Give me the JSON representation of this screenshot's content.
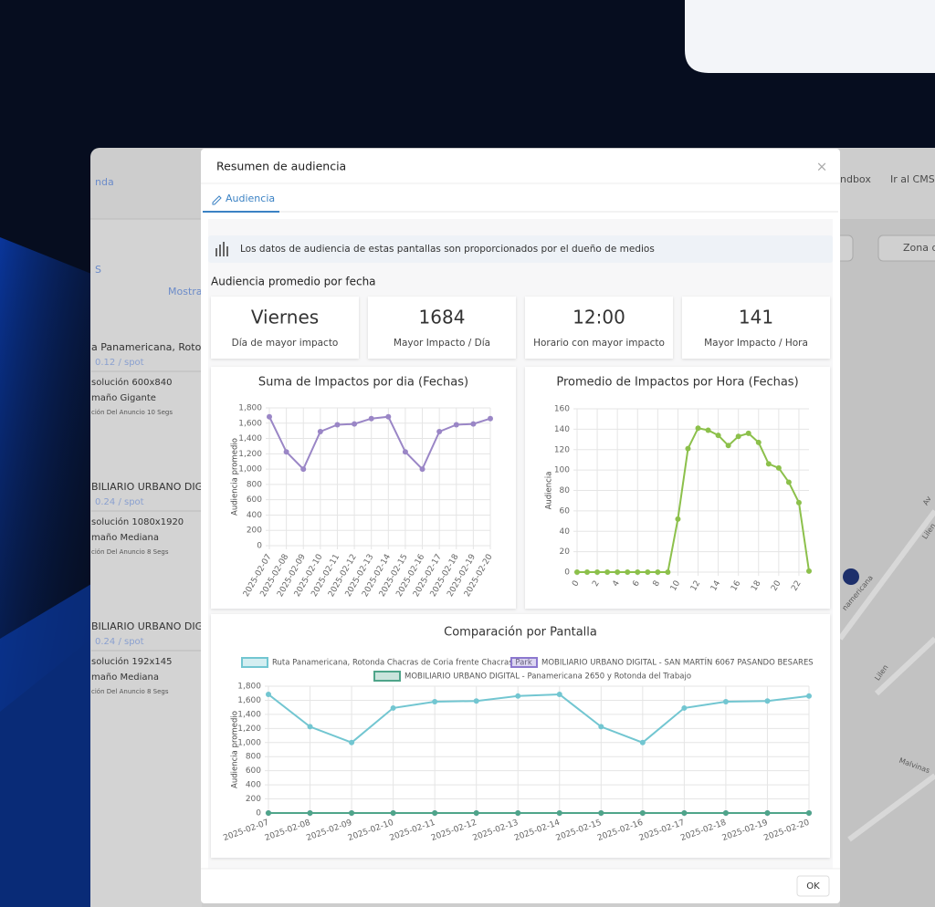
{
  "background": {
    "top_link": "nda",
    "top_tab": "S",
    "show": "Mostrar",
    "sandbox": "ndbox",
    "cms": "Ir al CMS",
    "zone": "Zona de",
    "items": [
      {
        "name": "a Panamericana, Rotond",
        "price": "0.12  / spot",
        "resolution": "solución 600x840",
        "size": "maño Gigante",
        "duration": "ción Del Anuncio 10 Segs"
      },
      {
        "name": "BILIARIO URBANO DIGIT",
        "price": "0.24  / spot",
        "resolution": "solución 1080x1920",
        "size": "maño Mediana",
        "duration": "ción Del Anuncio 8 Segs"
      },
      {
        "name": "BILIARIO URBANO DIGIT",
        "price": "0.24  / spot",
        "resolution": "solución 192x145",
        "size": "maño Mediana",
        "duration": "ción Del Anuncio 8 Segs"
      }
    ],
    "map_labels": [
      "Av",
      "Lilen",
      "Lilen",
      "Malvinas",
      "namericana"
    ]
  },
  "modal": {
    "title": "Resumen de audiencia",
    "close": "×",
    "tab": "Audiencia",
    "info": "Los datos de audiencia de estas pantallas son proporcionados por el dueño de medios",
    "section_title": "Audiencia promedio por fecha",
    "stats": [
      {
        "value": "Viernes",
        "label": "Día de mayor impacto"
      },
      {
        "value": 1684,
        "label": "Mayor Impacto / Día"
      },
      {
        "value": "12:00",
        "label": "Horario con mayor impacto"
      },
      {
        "value": 141,
        "label": "Mayor Impacto / Hora"
      }
    ],
    "ok": "OK"
  },
  "chart_data": [
    {
      "type": "line",
      "title": "Suma de Impactos por dia (Fechas)",
      "y_label": "Audiencia promedio",
      "categories": [
        "2025-02-07",
        "2025-02-08",
        "2025-02-09",
        "2025-02-10",
        "2025-02-11",
        "2025-02-12",
        "2025-02-13",
        "2025-02-14",
        "2025-02-15",
        "2025-02-16",
        "2025-02-17",
        "2025-02-18",
        "2025-02-19",
        "2025-02-20"
      ],
      "values": [
        1684,
        1225,
        1000,
        1490,
        1580,
        1590,
        1660,
        1684,
        1225,
        1000,
        1490,
        1580,
        1590,
        1660
      ],
      "color": "#9a86c6",
      "ylim": [
        0,
        1800
      ],
      "yticks": [
        0,
        200,
        400,
        600,
        800,
        {
          "value": 1000,
          "label": "1,000"
        },
        {
          "value": 1200,
          "label": "1,200"
        },
        {
          "value": 1400,
          "label": "1,400"
        },
        {
          "value": 1600,
          "label": "1,600"
        },
        {
          "value": 1800,
          "label": "1,800"
        }
      ],
      "grid": true
    },
    {
      "type": "line",
      "title": "Promedio de Impactos por Hora (Fechas)",
      "y_label": "Audiencia",
      "x": [
        0,
        1,
        2,
        3,
        4,
        5,
        6,
        7,
        8,
        9,
        10,
        11,
        12,
        13,
        14,
        15,
        16,
        17,
        18,
        19,
        20,
        21,
        22,
        23
      ],
      "values": [
        0,
        0,
        0,
        0,
        0,
        0,
        0,
        0,
        0,
        0,
        52,
        121,
        141,
        139,
        134,
        124,
        133,
        136,
        127,
        106,
        102,
        88,
        68,
        1
      ],
      "color": "#8cc04b",
      "xlim": [
        0,
        23
      ],
      "xticks": [
        0,
        2,
        4,
        6,
        8,
        10,
        12,
        14,
        16,
        18,
        20,
        22
      ],
      "ylim": [
        0,
        160
      ],
      "yticks": [
        0,
        20,
        40,
        60,
        80,
        100,
        120,
        140,
        160
      ],
      "grid": true
    },
    {
      "type": "line",
      "title": "Comparación por Pantalla",
      "y_label": "Audiencia promedio",
      "categories": [
        "2025-02-07",
        "2025-02-08",
        "2025-02-09",
        "2025-02-10",
        "2025-02-11",
        "2025-02-12",
        "2025-02-13",
        "2025-02-14",
        "2025-02-15",
        "2025-02-16",
        "2025-02-17",
        "2025-02-18",
        "2025-02-19",
        "2025-02-20"
      ],
      "series": [
        {
          "name": "Ruta Panamericana, Rotonda Chacras de Coria frente Chacras Park",
          "color": "#72c6d1",
          "values": [
            1684,
            1225,
            1000,
            1490,
            1580,
            1590,
            1660,
            1684,
            1225,
            1000,
            1490,
            1580,
            1590,
            1660
          ]
        },
        {
          "name": "MOBILIARIO URBANO DIGITAL - SAN MARTÍN 6067 PASANDO BESARES",
          "color": "#8c78cf",
          "values": [
            0,
            0,
            0,
            0,
            0,
            0,
            0,
            0,
            0,
            0,
            0,
            0,
            0,
            0
          ]
        },
        {
          "name": "MOBILIARIO URBANO DIGITAL - Panamericana 2650 y Rotonda del Trabajo",
          "color": "#4fa58a",
          "values": [
            0,
            0,
            0,
            0,
            0,
            0,
            0,
            0,
            0,
            0,
            0,
            0,
            0,
            0
          ]
        }
      ],
      "ylim": [
        0,
        1800
      ],
      "yticks": [
        0,
        200,
        400,
        600,
        800,
        {
          "value": 1000,
          "label": "1,000"
        },
        {
          "value": 1200,
          "label": "1,200"
        },
        {
          "value": 1400,
          "label": "1,400"
        },
        {
          "value": 1600,
          "label": "1,600"
        },
        {
          "value": 1800,
          "label": "1,800"
        }
      ],
      "grid": true,
      "legend": "top"
    }
  ]
}
